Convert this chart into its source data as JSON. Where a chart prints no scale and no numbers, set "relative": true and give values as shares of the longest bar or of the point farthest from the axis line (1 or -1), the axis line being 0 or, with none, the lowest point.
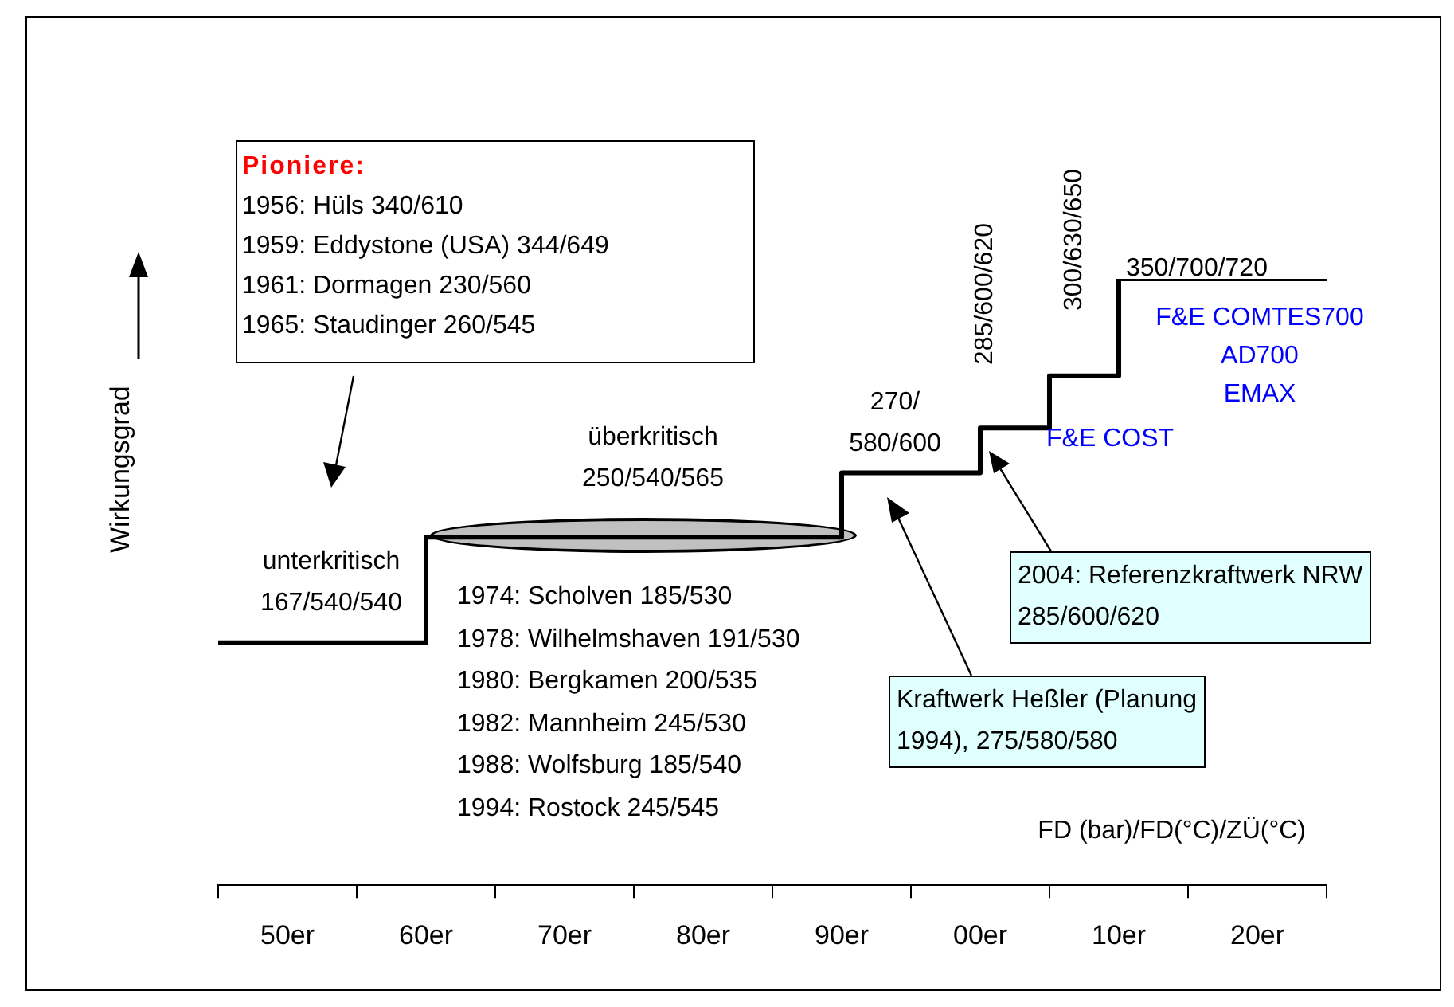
{
  "chart_data": {
    "type": "step",
    "relative": true,
    "ylabel": "Wirkungsgrad",
    "color": "#000000",
    "categories": [
      null,
      "50er",
      null,
      "60er",
      null,
      "70er",
      null,
      "80er",
      null,
      "90er",
      null,
      "00er",
      null,
      "10er",
      null,
      "20er",
      null
    ],
    "values": [
      0.4,
      0.4,
      0.4,
      0.574,
      0.574,
      0.574,
      0.574,
      0.574,
      0.574,
      0.68,
      0.68,
      0.754,
      0.84,
      1,
      1,
      1,
      1
    ],
    "annotations": [
      "unterkritisch\n167/540/540",
      "überkritisch\n250/540/565",
      "270/\n580/600",
      "285/600/620",
      "300/630/650",
      "350/700/720",
      "F&E COST",
      "F&E COMTES700\nAD700\nEMAX",
      "Pioniere:\n1956: Hüls 340/610\n1959: Eddystone (USA) 344/649\n1961: Dormagen 230/560\n1965: Staudinger 260/545",
      "1974: Scholven 185/530\n1978: Wilhelmshaven 191/530\n1980: Bergkamen 200/535\n1982: Mannheim 245/530\n1988: Wolfsburg 185/540\n1994: Rostock 245/545",
      "2004: Referenzkraftwerk NRW\n285/600/620",
      "Kraftwerk Heßler (Planung\n1994), 275/580/580",
      "FD (bar)/FD(°C)/ZÜ(°C)"
    ]
  }
}
